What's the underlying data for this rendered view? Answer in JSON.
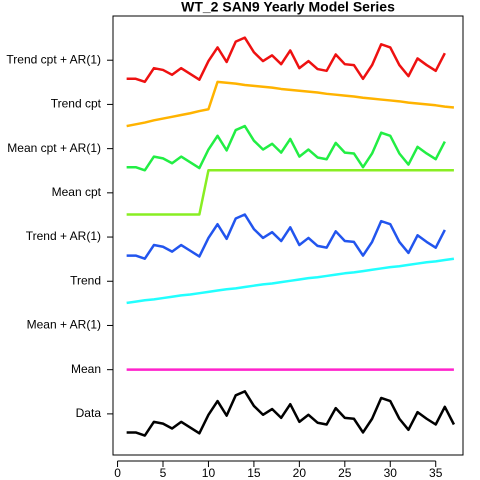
{
  "chart_data": {
    "type": "line",
    "title": "WT_2 SAN9 Yearly Model Series",
    "x": [
      1,
      2,
      3,
      4,
      5,
      6,
      7,
      8,
      9,
      10,
      11,
      12,
      13,
      14,
      15,
      16,
      17,
      18,
      19,
      20,
      21,
      22,
      23,
      24,
      25,
      26,
      27,
      28,
      29,
      30,
      31,
      32,
      33,
      34,
      35,
      36,
      37
    ],
    "xlim": [
      -0.5,
      38
    ],
    "xticks": [
      0,
      5,
      10,
      15,
      20,
      25,
      30,
      35
    ],
    "ylim": [
      0.07,
      10
    ],
    "yticks": [
      {
        "value": 1,
        "label": "Data"
      },
      {
        "value": 2,
        "label": "Mean"
      },
      {
        "value": 3,
        "label": "Mean + AR(1)"
      },
      {
        "value": 4,
        "label": "Trend"
      },
      {
        "value": 5,
        "label": "Trend + AR(1)"
      },
      {
        "value": 6,
        "label": "Mean cpt"
      },
      {
        "value": 7,
        "label": "Mean cpt + AR(1)"
      },
      {
        "value": 8,
        "label": "Trend cpt"
      },
      {
        "value": 9,
        "label": "Trend cpt + AR(1)"
      }
    ],
    "series": [
      {
        "name": "Data",
        "color": "#000000",
        "values": [
          0.58,
          0.58,
          0.51,
          0.82,
          0.78,
          0.67,
          0.82,
          0.69,
          0.56,
          0.98,
          1.29,
          0.96,
          1.42,
          1.51,
          1.18,
          0.98,
          1.11,
          0.91,
          1.22,
          0.82,
          0.98,
          0.8,
          0.76,
          1.13,
          0.91,
          0.89,
          0.58,
          0.89,
          1.36,
          1.29,
          0.89,
          0.64,
          1.04,
          0.89,
          0.76,
          1.16,
          0.76
        ]
      },
      {
        "name": "Mean",
        "color": "#ff22cc",
        "values": [
          2,
          2,
          2,
          2,
          2,
          2,
          2,
          2,
          2,
          2,
          2,
          2,
          2,
          2,
          2,
          2,
          2,
          2,
          2,
          2,
          2,
          2,
          2,
          2,
          2,
          2,
          2,
          2,
          2,
          2,
          2,
          2,
          2,
          2,
          2,
          2,
          2
        ]
      },
      {
        "name": "Trend",
        "color": "#22ffff",
        "values": [
          3.51,
          3.54,
          3.57,
          3.59,
          3.62,
          3.65,
          3.68,
          3.7,
          3.73,
          3.76,
          3.79,
          3.82,
          3.84,
          3.87,
          3.9,
          3.93,
          3.95,
          3.98,
          4.01,
          4.04,
          4.07,
          4.09,
          4.12,
          4.15,
          4.18,
          4.2,
          4.23,
          4.26,
          4.29,
          4.32,
          4.34,
          4.37,
          4.4,
          4.43,
          4.45,
          4.48,
          4.51
        ]
      },
      {
        "name": "Trend + AR(1)",
        "color": "#2255ee",
        "values": [
          4.58,
          4.58,
          4.51,
          4.82,
          4.78,
          4.67,
          4.82,
          4.69,
          4.56,
          4.98,
          5.29,
          4.96,
          5.42,
          5.51,
          5.18,
          4.98,
          5.11,
          4.91,
          5.22,
          4.82,
          4.98,
          4.8,
          4.76,
          5.13,
          4.91,
          4.89,
          4.58,
          4.89,
          5.36,
          5.29,
          4.89,
          4.64,
          5.04,
          4.89,
          4.76,
          5.16,
          null
        ]
      },
      {
        "name": "Mean cpt",
        "color": "#88ee22",
        "values": [
          5.51,
          5.51,
          5.51,
          5.51,
          5.51,
          5.51,
          5.51,
          5.51,
          5.51,
          6.51,
          6.51,
          6.51,
          6.51,
          6.51,
          6.51,
          6.51,
          6.51,
          6.51,
          6.51,
          6.51,
          6.51,
          6.51,
          6.51,
          6.51,
          6.51,
          6.51,
          6.51,
          6.51,
          6.51,
          6.51,
          6.51,
          6.51,
          6.51,
          6.51,
          6.51,
          6.51,
          6.51
        ]
      },
      {
        "name": "Mean cpt + AR(1)",
        "color": "#22ee44",
        "values": [
          6.58,
          6.58,
          6.51,
          6.82,
          6.78,
          6.67,
          6.82,
          6.69,
          6.56,
          6.98,
          7.29,
          6.96,
          7.42,
          7.51,
          7.18,
          6.98,
          7.11,
          6.91,
          7.22,
          6.82,
          6.98,
          6.8,
          6.76,
          7.13,
          6.91,
          6.89,
          6.58,
          6.89,
          7.36,
          7.29,
          6.89,
          6.64,
          7.04,
          6.89,
          6.76,
          7.16,
          null
        ]
      },
      {
        "name": "Trend cpt",
        "color": "#ffb300",
        "values": [
          7.51,
          7.55,
          7.59,
          7.64,
          7.68,
          7.72,
          7.76,
          7.8,
          7.85,
          7.89,
          8.51,
          8.49,
          8.47,
          8.44,
          8.42,
          8.4,
          8.38,
          8.35,
          8.33,
          8.31,
          8.29,
          8.27,
          8.24,
          8.22,
          8.2,
          8.18,
          8.15,
          8.13,
          8.11,
          8.09,
          8.07,
          8.04,
          8.02,
          8.0,
          7.98,
          7.95,
          7.93
        ]
      },
      {
        "name": "Trend cpt + AR(1)",
        "color": "#ee1111",
        "values": [
          8.58,
          8.58,
          8.51,
          8.82,
          8.78,
          8.67,
          8.82,
          8.69,
          8.56,
          8.98,
          9.29,
          8.96,
          9.42,
          9.51,
          9.18,
          8.98,
          9.11,
          8.91,
          9.22,
          8.82,
          8.98,
          8.8,
          8.76,
          9.13,
          8.91,
          8.89,
          8.58,
          8.89,
          9.36,
          9.29,
          8.89,
          8.64,
          9.04,
          8.89,
          8.76,
          9.16,
          null
        ]
      }
    ]
  }
}
